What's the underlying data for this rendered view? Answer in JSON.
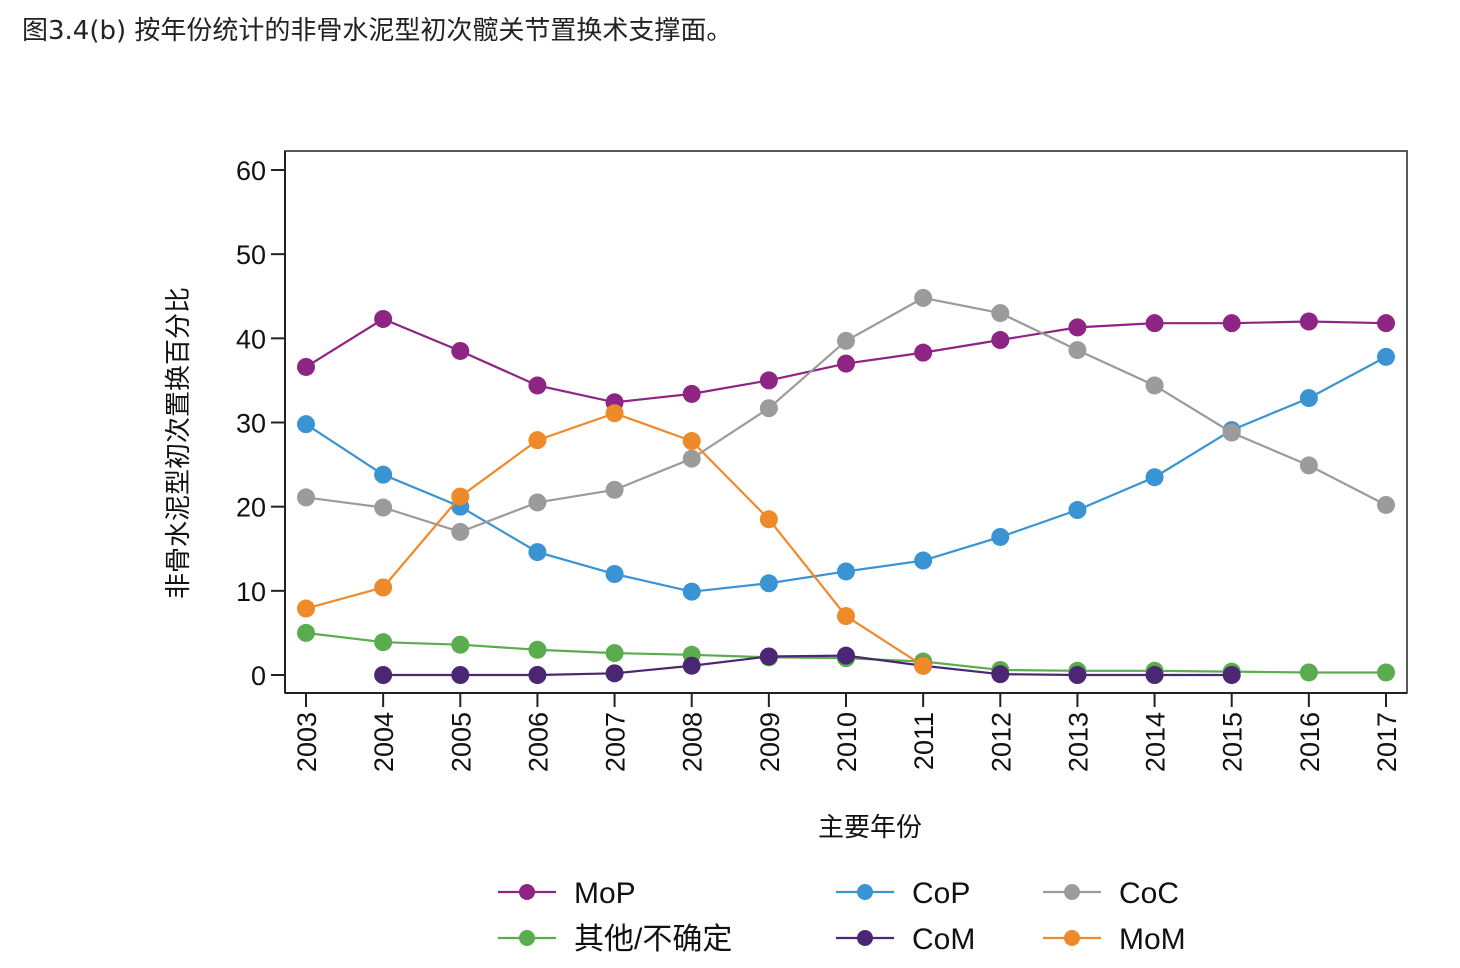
{
  "caption": "图3.4(b) 按年份统计的非骨水泥型初次髋关节置换术支撑面。",
  "chart_data": {
    "type": "line",
    "title": "",
    "xlabel": "主要年份",
    "ylabel": "非骨水泥型初次置换百分比",
    "ylim": [
      0,
      60
    ],
    "yticks": [
      0,
      10,
      20,
      30,
      40,
      50,
      60
    ],
    "categories": [
      "2003",
      "2004",
      "2005",
      "2006",
      "2007",
      "2008",
      "2009",
      "2010",
      "2011",
      "2012",
      "2013",
      "2014",
      "2015",
      "2016",
      "2017"
    ],
    "grid": false,
    "legend_position": "bottom",
    "series": [
      {
        "name": "MoP",
        "color": "#8e2483",
        "values": [
          36.6,
          42.3,
          38.5,
          34.4,
          32.4,
          33.4,
          35.0,
          37.0,
          38.3,
          39.8,
          41.3,
          41.8,
          41.8,
          42.0,
          41.8
        ]
      },
      {
        "name": "CoP",
        "color": "#3a93d3",
        "values": [
          29.8,
          23.8,
          20.0,
          14.6,
          12.0,
          9.9,
          10.9,
          12.3,
          13.6,
          16.4,
          19.6,
          23.5,
          29.1,
          32.9,
          37.8
        ]
      },
      {
        "name": "CoC",
        "color": "#9b9b9b",
        "values": [
          21.1,
          19.9,
          17.0,
          20.5,
          22.0,
          25.7,
          31.7,
          39.7,
          44.8,
          43.0,
          38.6,
          34.4,
          28.8,
          24.9,
          20.2
        ]
      },
      {
        "name": "其他/不确定",
        "color": "#5aad4e",
        "values": [
          5.0,
          3.9,
          3.6,
          3.0,
          2.6,
          2.4,
          2.1,
          2.0,
          1.6,
          0.6,
          0.5,
          0.5,
          0.4,
          0.3,
          0.3
        ]
      },
      {
        "name": "CoM",
        "color": "#4b2672",
        "values": [
          null,
          0.0,
          0.0,
          0.0,
          0.2,
          1.1,
          2.2,
          2.3,
          1.1,
          0.1,
          0.0,
          0.0,
          0.0,
          null,
          null
        ]
      },
      {
        "name": "MoM",
        "color": "#ee8a2a",
        "values": [
          7.9,
          10.4,
          21.2,
          27.9,
          31.1,
          27.8,
          18.5,
          7.0,
          1.1,
          null,
          null,
          null,
          null,
          null,
          null
        ]
      }
    ],
    "legend_order": [
      "MoP",
      "CoP",
      "CoC",
      "其他/不确定",
      "CoM",
      "MoM"
    ]
  }
}
